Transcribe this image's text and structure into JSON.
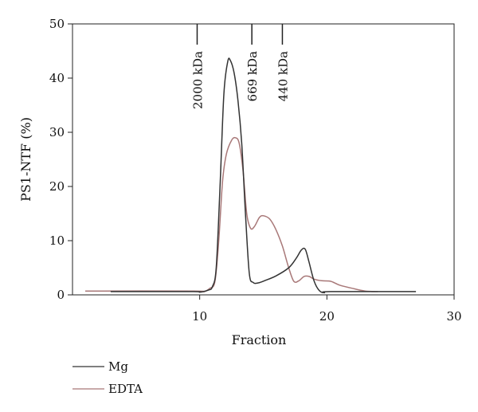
{
  "chart_data": {
    "type": "line",
    "xlabel": "Fraction",
    "ylabel": "PS1-NTF (%)",
    "xlim": [
      0,
      30
    ],
    "ylim": [
      0,
      50
    ],
    "xticks": [
      10,
      20,
      30
    ],
    "yticks": [
      0,
      10,
      20,
      30,
      40,
      50
    ],
    "grid": false,
    "legend_placement": "bottom-left",
    "markers": [
      {
        "label": "2000 kDa",
        "x": 9.8
      },
      {
        "label": "669 kDa",
        "x": 14.1
      },
      {
        "label": "440 kDa",
        "x": 16.5
      }
    ],
    "series": [
      {
        "name": "Mg",
        "color": "#333333",
        "points": [
          [
            3,
            0.6
          ],
          [
            9.5,
            0.6
          ],
          [
            10,
            0.5
          ],
          [
            10.7,
            0.9
          ],
          [
            11,
            1.5
          ],
          [
            11.3,
            5
          ],
          [
            11.6,
            20
          ],
          [
            11.9,
            37
          ],
          [
            12.2,
            43
          ],
          [
            12.4,
            43.3
          ],
          [
            12.7,
            41
          ],
          [
            13,
            36
          ],
          [
            13.3,
            28
          ],
          [
            13.6,
            15
          ],
          [
            13.9,
            4
          ],
          [
            14.2,
            2.3
          ],
          [
            14.6,
            2.2
          ],
          [
            15.2,
            2.7
          ],
          [
            16,
            3.5
          ],
          [
            17,
            5
          ],
          [
            17.6,
            6.8
          ],
          [
            18,
            8.3
          ],
          [
            18.3,
            8.4
          ],
          [
            18.6,
            6
          ],
          [
            19,
            2.5
          ],
          [
            19.4,
            0.8
          ],
          [
            19.8,
            0.4
          ],
          [
            20.3,
            0.6
          ],
          [
            27,
            0.6
          ]
        ]
      },
      {
        "name": "EDTA",
        "color": "#a87878",
        "points": [
          [
            1,
            0.7
          ],
          [
            9.5,
            0.7
          ],
          [
            10.3,
            0.6
          ],
          [
            10.8,
            1.2
          ],
          [
            11.2,
            2.5
          ],
          [
            11.5,
            10
          ],
          [
            11.8,
            21
          ],
          [
            12.1,
            26
          ],
          [
            12.5,
            28.5
          ],
          [
            12.8,
            29
          ],
          [
            13.1,
            28
          ],
          [
            13.4,
            23
          ],
          [
            13.7,
            15
          ],
          [
            14,
            12.3
          ],
          [
            14.3,
            12.6
          ],
          [
            14.7,
            14.3
          ],
          [
            15,
            14.6
          ],
          [
            15.5,
            14
          ],
          [
            16,
            12
          ],
          [
            16.5,
            9
          ],
          [
            17,
            5
          ],
          [
            17.4,
            2.5
          ],
          [
            17.8,
            2.6
          ],
          [
            18.2,
            3.4
          ],
          [
            18.6,
            3.4
          ],
          [
            19,
            2.9
          ],
          [
            19.6,
            2.6
          ],
          [
            20.3,
            2.5
          ],
          [
            21,
            1.8
          ],
          [
            22,
            1.2
          ],
          [
            23,
            0.7
          ],
          [
            24,
            0.6
          ]
        ]
      }
    ]
  }
}
